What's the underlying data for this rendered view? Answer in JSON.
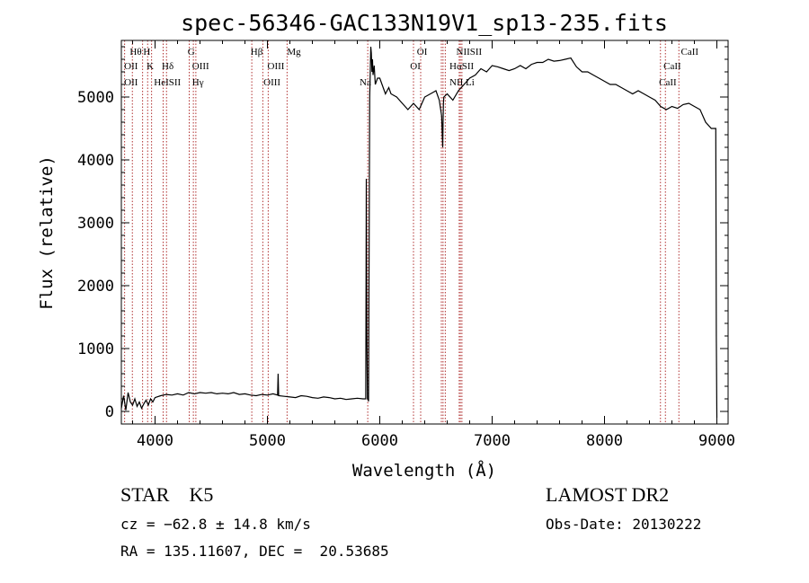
{
  "chart_data": {
    "type": "line",
    "title": "spec-56346-GAC133N19V1_sp13-235.fits",
    "xlabel": "Wavelength (Å)",
    "ylabel": "Flux (relative)",
    "xlim": [
      3700,
      9100
    ],
    "ylim": [
      -200,
      5900
    ],
    "xticks": [
      4000,
      5000,
      6000,
      7000,
      8000,
      9000
    ],
    "yticks": [
      0,
      1000,
      2000,
      3000,
      4000,
      5000
    ],
    "grid": false,
    "series": [
      {
        "x": [
          3700,
          3720,
          3740,
          3760,
          3780,
          3800,
          3820,
          3840,
          3860,
          3880,
          3900,
          3920,
          3940,
          3960,
          3980,
          4000,
          4050,
          4100,
          4150,
          4200,
          4250,
          4300,
          4350,
          4400,
          4450,
          4500,
          4550,
          4600,
          4650,
          4700,
          4750,
          4800,
          4850,
          4900,
          4950,
          5000,
          5050,
          5090,
          5095,
          5100,
          5150,
          5200,
          5250,
          5300,
          5350,
          5400,
          5450,
          5500,
          5550,
          5600,
          5650,
          5700,
          5750,
          5800,
          5850,
          5875,
          5880,
          5885,
          5890,
          5895,
          5900,
          5910,
          5920,
          5925,
          5930,
          5935,
          5940,
          5950,
          5960,
          5980,
          6000,
          6020,
          6050,
          6080,
          6100,
          6150,
          6200,
          6250,
          6300,
          6350,
          6400,
          6450,
          6500,
          6530,
          6550,
          6560,
          6563,
          6566,
          6570,
          6600,
          6650,
          6700,
          6750,
          6800,
          6850,
          6900,
          6950,
          7000,
          7050,
          7100,
          7150,
          7200,
          7250,
          7300,
          7350,
          7400,
          7450,
          7500,
          7550,
          7600,
          7650,
          7700,
          7750,
          7800,
          7850,
          7900,
          7950,
          8000,
          8050,
          8100,
          8150,
          8200,
          8250,
          8300,
          8350,
          8400,
          8450,
          8500,
          8550,
          8600,
          8650,
          8700,
          8750,
          8800,
          8850,
          8900,
          8950,
          8990,
          8995,
          9000
        ],
        "y": [
          50,
          250,
          20,
          300,
          150,
          100,
          200,
          80,
          150,
          50,
          120,
          180,
          100,
          200,
          150,
          220,
          250,
          270,
          260,
          280,
          260,
          300,
          280,
          300,
          290,
          300,
          280,
          290,
          280,
          300,
          270,
          280,
          260,
          250,
          270,
          260,
          280,
          260,
          600,
          250,
          240,
          230,
          220,
          250,
          240,
          220,
          210,
          230,
          220,
          200,
          210,
          190,
          200,
          210,
          200,
          200,
          3700,
          1300,
          200,
          200,
          160,
          5000,
          5800,
          5700,
          5400,
          5600,
          5350,
          5500,
          5200,
          5300,
          5300,
          5200,
          5050,
          5150,
          5050,
          5000,
          4900,
          4800,
          4900,
          4800,
          5000,
          5050,
          5100,
          4950,
          4700,
          4200,
          4600,
          4900,
          5000,
          5050,
          4950,
          5100,
          5200,
          5300,
          5350,
          5450,
          5400,
          5500,
          5480,
          5450,
          5420,
          5450,
          5500,
          5450,
          5520,
          5550,
          5550,
          5600,
          5570,
          5580,
          5600,
          5620,
          5480,
          5400,
          5400,
          5350,
          5300,
          5250,
          5200,
          5200,
          5150,
          5100,
          5050,
          5100,
          5050,
          5000,
          4950,
          4850,
          4800,
          4850,
          4820,
          4880,
          4900,
          4850,
          4800,
          4600,
          4500,
          4500,
          1200,
          -100
        ]
      }
    ],
    "lines": [
      {
        "wl": 3729,
        "top": [
          "Oll",
          "Oll"
        ]
      },
      {
        "wl": 3798,
        "top": [
          "Hθ"
        ]
      },
      {
        "wl": 3889,
        "top": [
          "H"
        ]
      },
      {
        "wl": 3934,
        "top": [
          "K"
        ]
      },
      {
        "wl": 3969,
        "top": [
          "Hel"
        ]
      },
      {
        "wl": 4072,
        "top": [
          "SII"
        ]
      },
      {
        "wl": 4102,
        "top": [
          "Hδ"
        ]
      },
      {
        "wl": 4304,
        "top": [
          "G"
        ]
      },
      {
        "wl": 4341,
        "top": [
          "Hγ"
        ]
      },
      {
        "wl": 4363,
        "top": [
          "OIII"
        ]
      },
      {
        "wl": 4861,
        "top": [
          "Hβ"
        ]
      },
      {
        "wl": 4959,
        "top": [
          "OIII"
        ]
      },
      {
        "wl": 5007,
        "top": [
          "OIII"
        ]
      },
      {
        "wl": 5175,
        "top": [
          "Mg"
        ]
      },
      {
        "wl": 5893,
        "top": [
          "Na"
        ]
      },
      {
        "wl": 6300,
        "top": [
          "OI"
        ]
      },
      {
        "wl": 6364,
        "top": [
          "OI"
        ]
      },
      {
        "wl": 6548,
        "top": [
          "NII"
        ]
      },
      {
        "wl": 6563,
        "top": [
          "Hα"
        ]
      },
      {
        "wl": 6583,
        "top": [
          "NII"
        ]
      },
      {
        "wl": 6707,
        "top": [
          "Li"
        ]
      },
      {
        "wl": 6717,
        "top": [
          "SII"
        ]
      },
      {
        "wl": 6731,
        "top": [
          "SII"
        ]
      },
      {
        "wl": 8498,
        "top": [
          "CaII"
        ]
      },
      {
        "wl": 8542,
        "top": [
          "CaII"
        ]
      },
      {
        "wl": 8662,
        "top": [
          "CaII"
        ]
      }
    ],
    "line_labels": [
      {
        "text": "Hθ",
        "wl": 3775,
        "row": 0
      },
      {
        "text": "H",
        "wl": 3895,
        "row": 0
      },
      {
        "text": "G",
        "wl": 4290,
        "row": 0
      },
      {
        "text": "Hβ",
        "wl": 4850,
        "row": 0
      },
      {
        "text": "Mg",
        "wl": 5175,
        "row": 0
      },
      {
        "text": "OI",
        "wl": 6330,
        "row": 0
      },
      {
        "text": "NIISII",
        "wl": 6680,
        "row": 0
      },
      {
        "text": "CaII",
        "wl": 8680,
        "row": 0
      },
      {
        "text": "OII",
        "wl": 3725,
        "row": 1
      },
      {
        "text": "K",
        "wl": 3925,
        "row": 1
      },
      {
        "text": "Hδ",
        "wl": 4060,
        "row": 1
      },
      {
        "text": "OIII",
        "wl": 4330,
        "row": 1
      },
      {
        "text": "OIII",
        "wl": 5000,
        "row": 1
      },
      {
        "text": "OI",
        "wl": 6270,
        "row": 1
      },
      {
        "text": "HαSII",
        "wl": 6620,
        "row": 1
      },
      {
        "text": "CaII",
        "wl": 8525,
        "row": 1
      },
      {
        "text": "OII",
        "wl": 3725,
        "row": 2
      },
      {
        "text": "HeISII",
        "wl": 3990,
        "row": 2
      },
      {
        "text": "Hγ",
        "wl": 4330,
        "row": 2
      },
      {
        "text": "OIII",
        "wl": 4965,
        "row": 2
      },
      {
        "text": "Na",
        "wl": 5820,
        "row": 2
      },
      {
        "text": "NII Li",
        "wl": 6620,
        "row": 2
      },
      {
        "text": "CaII",
        "wl": 8485,
        "row": 2
      }
    ]
  },
  "info": {
    "class_label": "STAR    K5",
    "survey": "LAMOST DR2",
    "cz": "cz = −62.8 ± 14.8 km/s",
    "obs_date": "Obs-Date: 20130222",
    "coords": "RA = 135.11607, DEC =  20.53685"
  }
}
